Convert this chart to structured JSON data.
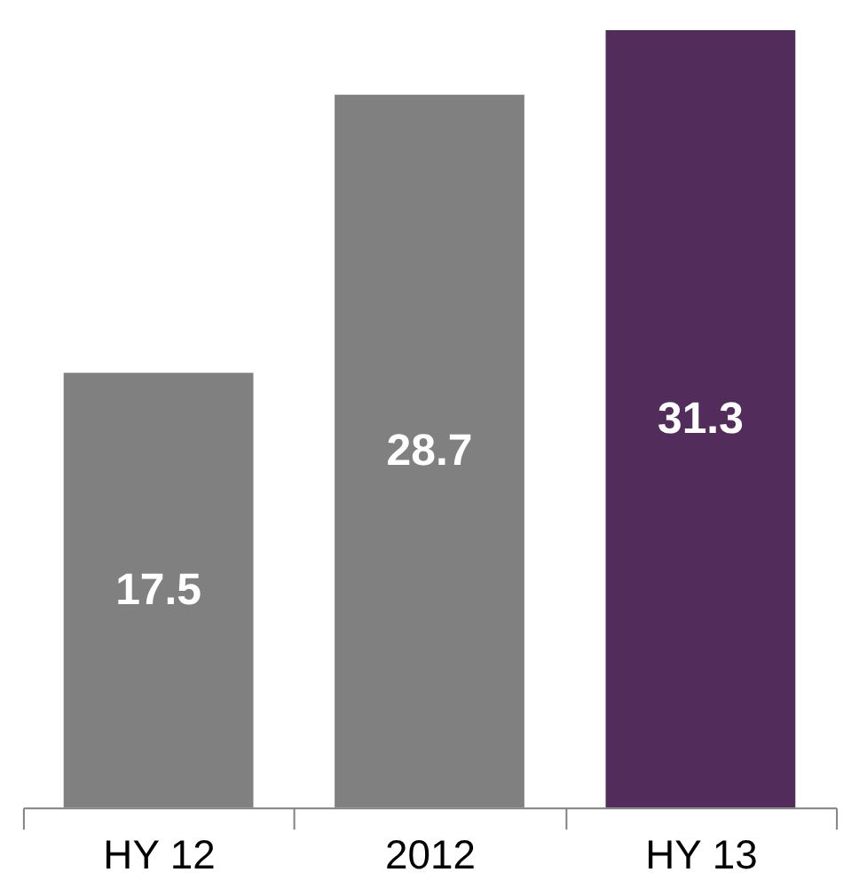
{
  "chart_data": {
    "type": "bar",
    "categories": [
      "HY 12",
      "2012",
      "HY 13"
    ],
    "values": [
      17.5,
      28.7,
      31.3
    ],
    "colors": [
      "#808080",
      "#808080",
      "#522d5b"
    ],
    "data_labels": true,
    "grid": false
  }
}
